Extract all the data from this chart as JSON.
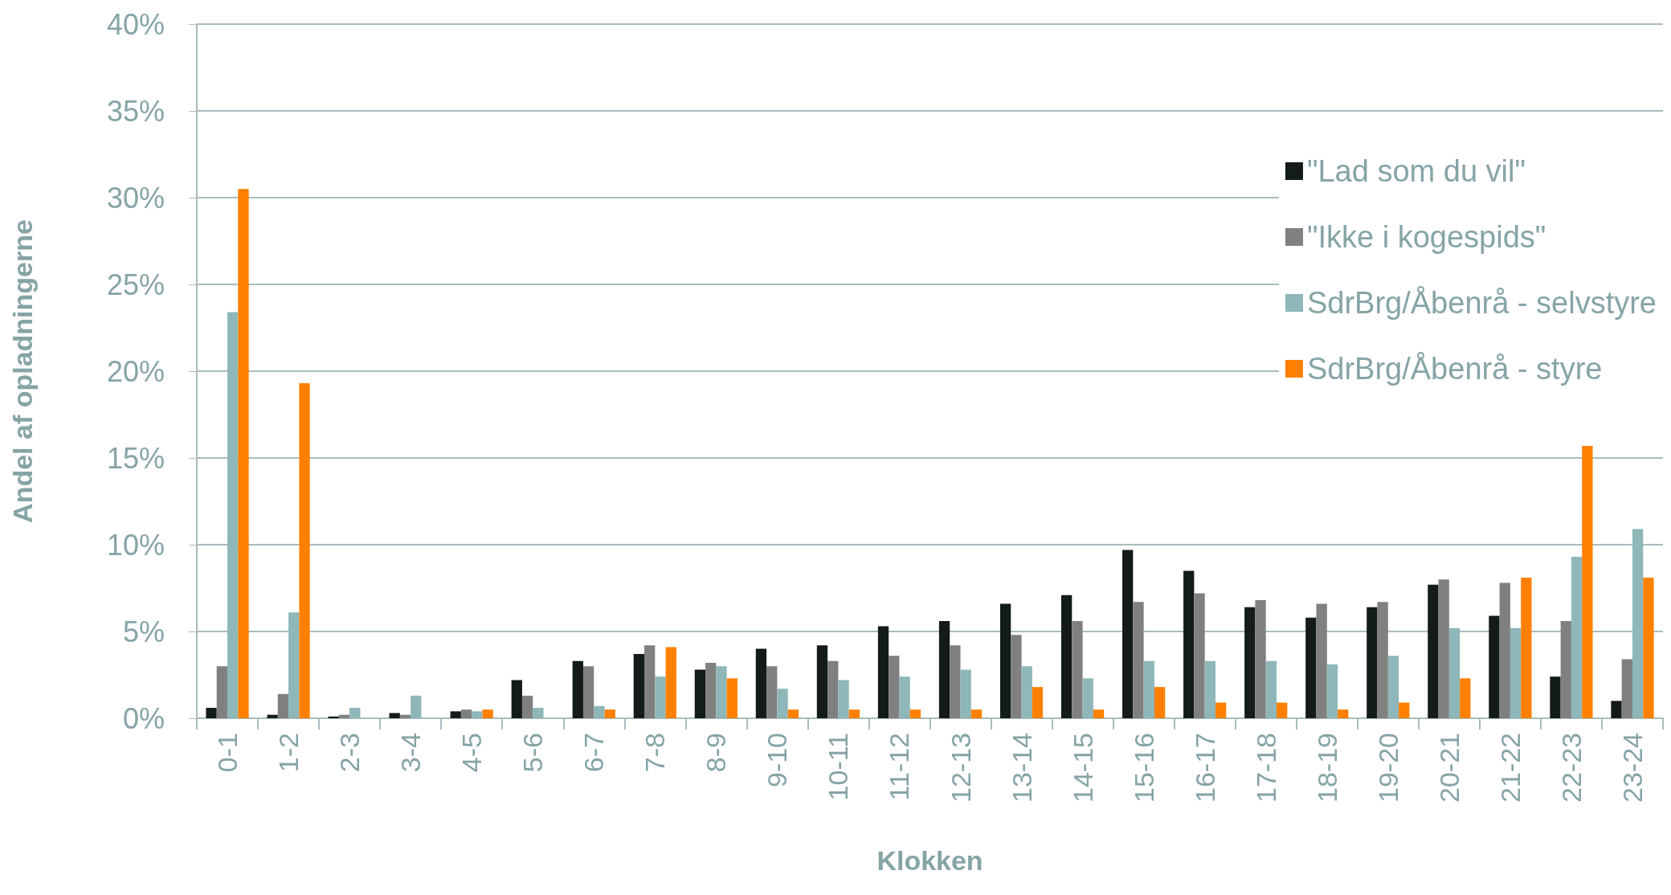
{
  "chart_data": {
    "type": "bar",
    "xlabel": "Klokken",
    "ylabel": "Andel af opladningerne",
    "categories": [
      "0-1",
      "1-2",
      "2-3",
      "3-4",
      "4-5",
      "5-6",
      "6-7",
      "7-8",
      "8-9",
      "9-10",
      "10-11",
      "11-12",
      "12-13",
      "13-14",
      "14-15",
      "15-16",
      "16-17",
      "17-18",
      "18-19",
      "19-20",
      "20-21",
      "21-22",
      "22-23",
      "23-24"
    ],
    "series": [
      {
        "name": "\"Lad som du vil\"",
        "color": "#131b1b",
        "values": [
          0.6,
          0.2,
          0.1,
          0.3,
          0.4,
          2.2,
          3.3,
          3.7,
          2.8,
          4.0,
          4.2,
          5.3,
          5.6,
          6.6,
          7.1,
          9.7,
          8.5,
          6.4,
          5.8,
          6.4,
          7.7,
          5.9,
          2.4,
          1.0
        ]
      },
      {
        "name": "\"Ikke i kogespids\"",
        "color": "#808080",
        "values": [
          3.0,
          1.4,
          0.2,
          0.2,
          0.5,
          1.3,
          3.0,
          4.2,
          3.2,
          3.0,
          3.3,
          3.6,
          4.2,
          4.8,
          5.6,
          6.7,
          7.2,
          6.8,
          6.6,
          6.7,
          8.0,
          7.8,
          5.6,
          3.4
        ]
      },
      {
        "name": "SdrBrg/Åbenrå - selvstyre",
        "color": "#8fb6b8",
        "values": [
          23.4,
          6.1,
          0.6,
          1.3,
          0.4,
          0.6,
          0.7,
          2.4,
          3.0,
          1.7,
          2.2,
          2.4,
          2.8,
          3.0,
          2.3,
          3.3,
          3.3,
          3.3,
          3.1,
          3.6,
          5.2,
          5.2,
          9.3,
          10.9
        ]
      },
      {
        "name": "SdrBrg/Åbenrå - styre",
        "color": "#ff8000",
        "values": [
          30.5,
          19.3,
          0,
          0,
          0.5,
          0,
          0.5,
          4.1,
          2.3,
          0.5,
          0.5,
          0.5,
          0.5,
          1.8,
          0.5,
          1.8,
          0.9,
          0.9,
          0.5,
          0.9,
          2.3,
          8.1,
          15.7,
          8.1
        ]
      }
    ],
    "ylim": [
      0,
      40
    ],
    "yticks": [
      {
        "value": 0,
        "label": "0%"
      },
      {
        "value": 5,
        "label": "5%"
      },
      {
        "value": 10,
        "label": "10%"
      },
      {
        "value": 15,
        "label": "15%"
      },
      {
        "value": 20,
        "label": "20%"
      },
      {
        "value": 25,
        "label": "25%"
      },
      {
        "value": 30,
        "label": "30%"
      },
      {
        "value": 35,
        "label": "35%"
      },
      {
        "value": 40,
        "label": "40%"
      }
    ],
    "grid": "y",
    "legend": "right"
  }
}
